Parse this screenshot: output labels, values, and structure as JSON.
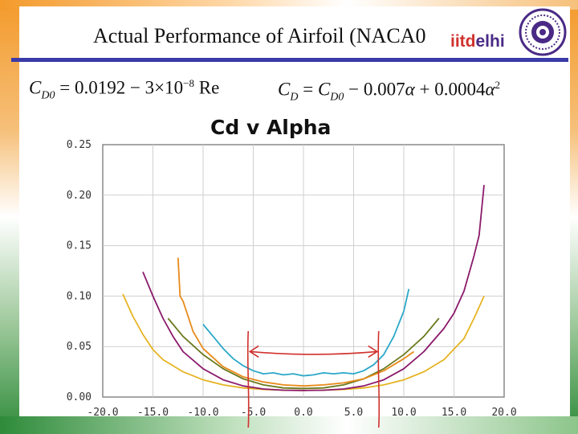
{
  "slide": {
    "title": "Actual Performance of Airfoil (NACA0",
    "logo_iitd": "iitd",
    "logo_delhi": "elhi",
    "formula_cd0": {
      "lhs": "C",
      "lhs_sub": "D0",
      "rhs": " = 0.0192 − 3×10",
      "exp": "−8",
      "tail": " Re"
    },
    "formula_cd": {
      "lhs": "C",
      "lhs_sub": "D",
      "eq": " = ",
      "c2": "C",
      "c2_sub": "D0",
      "mid": " − 0.007",
      "alpha": "α",
      "plus": " + 0.0004",
      "alpha2": "α",
      "exp": "2"
    }
  },
  "chart_data": {
    "type": "line",
    "title": "Cd v Alpha",
    "xlim": [
      -20,
      20
    ],
    "ylim": [
      0,
      0.25
    ],
    "xticks": [
      "-20.0",
      "-15.0",
      "-10.0",
      "-5.0",
      "0.0",
      "5.0",
      "10.0",
      "15.0",
      "20.0"
    ],
    "yticks": [
      "0.00",
      "0.05",
      "0.10",
      "0.15",
      "0.20",
      "0.25"
    ],
    "grid": true,
    "colors": {
      "gold": "#e6b422",
      "purple": "#8b1a6b",
      "olive": "#6b7a1e",
      "orange": "#e88a1a",
      "cyan": "#2aa8c8",
      "annotation": "#d0312d"
    },
    "series": [
      {
        "color": "gold",
        "x": [
          -18,
          -17,
          -16,
          -15,
          -14,
          -12,
          -10,
          -8,
          -6,
          -4,
          -2,
          0,
          2,
          4,
          6,
          8,
          10,
          12,
          14,
          16,
          17,
          18
        ],
        "y": [
          0.102,
          0.08,
          0.062,
          0.047,
          0.037,
          0.025,
          0.017,
          0.012,
          0.009,
          0.0075,
          0.0068,
          0.0065,
          0.0068,
          0.0075,
          0.009,
          0.012,
          0.017,
          0.025,
          0.037,
          0.058,
          0.078,
          0.1
        ]
      },
      {
        "color": "purple",
        "x": [
          -16,
          -15,
          -14,
          -13,
          -12,
          -10,
          -8,
          -6,
          -4,
          -2,
          0,
          2,
          4,
          6,
          8,
          10,
          12,
          14,
          15,
          16,
          17,
          17.5,
          18
        ],
        "y": [
          0.124,
          0.1,
          0.078,
          0.06,
          0.045,
          0.028,
          0.017,
          0.011,
          0.008,
          0.0068,
          0.0065,
          0.0068,
          0.008,
          0.011,
          0.017,
          0.028,
          0.045,
          0.068,
          0.083,
          0.105,
          0.14,
          0.16,
          0.21
        ]
      },
      {
        "color": "olive",
        "x": [
          -13.5,
          -12,
          -10,
          -8,
          -6,
          -4,
          -2,
          0,
          2,
          4,
          6,
          8,
          10,
          12,
          13.5
        ],
        "y": [
          0.078,
          0.06,
          0.042,
          0.028,
          0.018,
          0.012,
          0.009,
          0.0085,
          0.009,
          0.012,
          0.018,
          0.028,
          0.042,
          0.06,
          0.078
        ]
      },
      {
        "color": "orange",
        "x": [
          -12.5,
          -12.3,
          -12,
          -11.5,
          -11,
          -10,
          -8,
          -6,
          -4,
          -2,
          0,
          2,
          4,
          6,
          8,
          10,
          11
        ],
        "y": [
          0.138,
          0.1,
          0.095,
          0.08,
          0.065,
          0.048,
          0.03,
          0.02,
          0.015,
          0.012,
          0.011,
          0.012,
          0.014,
          0.018,
          0.026,
          0.038,
          0.045
        ]
      },
      {
        "color": "cyan",
        "x": [
          -10,
          -9,
          -8,
          -7,
          -6,
          -5,
          -4,
          -3,
          -2,
          -1,
          0,
          1,
          2,
          3,
          4,
          5,
          6,
          7,
          8,
          9,
          10,
          10.5
        ],
        "y": [
          0.072,
          0.06,
          0.048,
          0.038,
          0.031,
          0.026,
          0.023,
          0.024,
          0.022,
          0.023,
          0.021,
          0.022,
          0.024,
          0.023,
          0.024,
          0.023,
          0.026,
          0.032,
          0.042,
          0.06,
          0.085,
          0.107
        ]
      }
    ],
    "annotations": {
      "vertical_lines_x": [
        -5.5,
        7.5
      ],
      "arrow_from_x": -5.5,
      "arrow_to_x": 7.5,
      "arrow_y": 0.045
    }
  }
}
